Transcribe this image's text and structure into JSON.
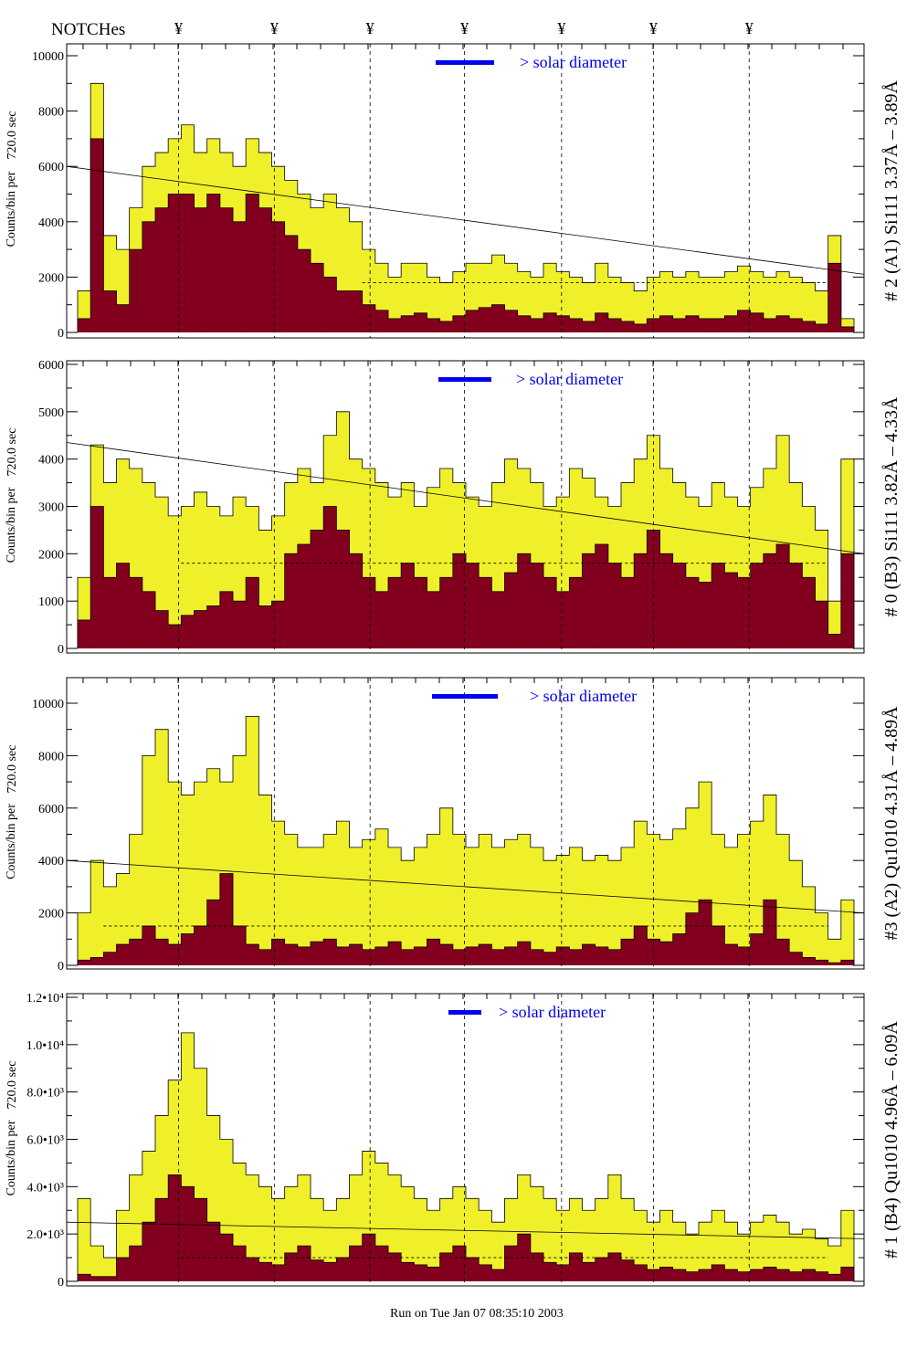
{
  "header": {
    "notches_label": "NOTCHes",
    "notch_symbol": "¥"
  },
  "footer": {
    "run_text": "Run on Tue Jan 07 08:35:10 2003"
  },
  "colors": {
    "yellow": "#f0f02a",
    "red": "#82001e",
    "legend": "#0000ee"
  },
  "chart_data": [
    {
      "type": "bar",
      "title": "# 2 (A1) Si111  3.37Å – 3.89Å",
      "ylabel": "Counts/bin per",
      "ylabel2": "720.0 sec",
      "legend": "> solar diameter",
      "ylim": [
        0,
        10000
      ],
      "yticks": [
        0,
        2000,
        4000,
        6000,
        8000,
        10000
      ],
      "ytick_labels": [
        "0",
        "2000",
        "4000",
        "6000",
        "8000",
        "10000"
      ],
      "notches": [
        7.8,
        15.2,
        22.6,
        29.9,
        37.4,
        44.5,
        51.9
      ],
      "fit_line": [
        6000,
        2100
      ],
      "dashed_level": {
        "from": 22,
        "to": 58,
        "value": 1800
      },
      "series": [
        {
          "name": "total",
          "values": [
            1500,
            9000,
            3500,
            3000,
            4500,
            6000,
            6500,
            7000,
            7500,
            6500,
            7000,
            6500,
            6000,
            7000,
            6500,
            6000,
            5500,
            5000,
            4500,
            5000,
            4500,
            4000,
            3000,
            2500,
            2000,
            2500,
            2500,
            2000,
            1800,
            2200,
            2500,
            2500,
            2800,
            2500,
            2200,
            2000,
            2500,
            2200,
            2000,
            1800,
            2500,
            2000,
            1800,
            1500,
            2000,
            2200,
            2000,
            2200,
            2000,
            2000,
            2200,
            2400,
            2200,
            2000,
            2200,
            2000,
            1800,
            1500,
            3500,
            500
          ]
        },
        {
          "name": "selected",
          "values": [
            500,
            7000,
            1500,
            1000,
            3000,
            4000,
            4500,
            5000,
            5000,
            4500,
            5000,
            4500,
            4000,
            5000,
            4500,
            4000,
            3500,
            3000,
            2500,
            2000,
            1500,
            1500,
            1000,
            800,
            500,
            600,
            700,
            500,
            400,
            600,
            800,
            900,
            1000,
            800,
            600,
            500,
            700,
            600,
            500,
            400,
            700,
            500,
            400,
            300,
            500,
            600,
            500,
            600,
            500,
            500,
            600,
            800,
            700,
            500,
            600,
            500,
            400,
            300,
            2500,
            200
          ]
        }
      ]
    },
    {
      "type": "bar",
      "title": "# 0 (B3) Si111  3.82Å – 4.33Å",
      "ylabel": "Counts/bin per",
      "ylabel2": "720.0 sec",
      "legend": "> solar diameter",
      "ylim": [
        0,
        6000
      ],
      "yticks": [
        0,
        1000,
        2000,
        3000,
        4000,
        5000,
        6000
      ],
      "ytick_labels": [
        "0",
        "1000",
        "2000",
        "3000",
        "4000",
        "5000",
        "6000"
      ],
      "notches": [
        7.8,
        15.2,
        22.6,
        29.9,
        37.4,
        44.5,
        51.9
      ],
      "fit_line": [
        4350,
        2000
      ],
      "dashed_level": {
        "from": 8,
        "to": 58,
        "value": 1800
      },
      "series": [
        {
          "name": "total",
          "values": [
            1500,
            4300,
            3500,
            4000,
            3800,
            3500,
            3200,
            2800,
            3000,
            3300,
            3000,
            2800,
            3200,
            3000,
            2500,
            2800,
            3500,
            3800,
            3500,
            4500,
            5000,
            4000,
            3800,
            3500,
            3200,
            3500,
            3000,
            3400,
            3800,
            3500,
            3200,
            3000,
            3500,
            4000,
            3800,
            3500,
            3000,
            3200,
            3800,
            3600,
            3200,
            3000,
            3500,
            4000,
            4500,
            3800,
            3500,
            3200,
            3000,
            3500,
            3200,
            3000,
            3400,
            3800,
            4500,
            3500,
            3000,
            2500,
            1000,
            4000
          ]
        },
        {
          "name": "selected",
          "values": [
            600,
            3000,
            1500,
            1800,
            1500,
            1200,
            800,
            500,
            700,
            800,
            900,
            1200,
            1000,
            1500,
            900,
            1000,
            2000,
            2200,
            2500,
            3000,
            2500,
            2000,
            1500,
            1200,
            1500,
            1800,
            1500,
            1200,
            1500,
            2000,
            1800,
            1500,
            1200,
            1600,
            2000,
            1800,
            1500,
            1200,
            1500,
            2000,
            2200,
            1800,
            1500,
            2000,
            2500,
            2000,
            1800,
            1500,
            1400,
            1800,
            1600,
            1500,
            1800,
            2000,
            2200,
            1800,
            1500,
            1000,
            300,
            2000
          ]
        }
      ]
    },
    {
      "type": "bar",
      "title": "#3 (A2) Qu1010  4.31Å – 4.89Å",
      "ylabel": "Counts/bin per",
      "ylabel2": "720.0 sec",
      "legend": "> solar diameter",
      "ylim": [
        0,
        11000
      ],
      "yticks": [
        0,
        2000,
        4000,
        6000,
        8000,
        10000
      ],
      "ytick_labels": [
        "0",
        "2000",
        "4000",
        "6000",
        "8000",
        "10000"
      ],
      "notches": [
        7.8,
        15.2,
        22.6,
        29.9,
        37.4,
        44.5,
        51.9
      ],
      "fit_line": [
        4000,
        2000
      ],
      "dashed_level": {
        "from": 2,
        "to": 58,
        "value": 1500
      },
      "series": [
        {
          "name": "total",
          "values": [
            2000,
            4000,
            3000,
            3500,
            5000,
            8000,
            9000,
            7000,
            6500,
            7000,
            7500,
            7000,
            8000,
            9500,
            6500,
            5500,
            5000,
            4500,
            4500,
            5000,
            5500,
            4500,
            4800,
            5200,
            4500,
            4000,
            4500,
            5000,
            6000,
            5000,
            4500,
            5000,
            4500,
            4800,
            5000,
            4500,
            4000,
            4200,
            4500,
            4000,
            4200,
            4000,
            4500,
            5500,
            5000,
            4800,
            5200,
            6000,
            7000,
            5000,
            4500,
            5000,
            5500,
            6500,
            5000,
            4000,
            3000,
            2000,
            1000,
            2500
          ]
        },
        {
          "name": "selected",
          "values": [
            200,
            300,
            500,
            800,
            1000,
            1500,
            1000,
            800,
            1200,
            1500,
            2500,
            3500,
            1500,
            800,
            600,
            1000,
            800,
            700,
            900,
            1000,
            700,
            800,
            600,
            700,
            900,
            600,
            700,
            1000,
            800,
            600,
            700,
            800,
            600,
            700,
            900,
            600,
            500,
            700,
            600,
            800,
            700,
            600,
            1000,
            1500,
            1000,
            900,
            1200,
            2000,
            2500,
            1500,
            800,
            700,
            1200,
            2500,
            1000,
            500,
            300,
            200,
            100,
            200
          ]
        }
      ]
    },
    {
      "type": "bar",
      "title": "# 1 (B4) Qu1010 4.96Å – 6.09Å",
      "ylabel": "Counts/bin per",
      "ylabel2": "720.0 sec",
      "legend": "> solar diameter",
      "ylim": [
        0,
        12200
      ],
      "yticks": [
        0,
        2000,
        4000,
        6000,
        8000,
        10000,
        12000
      ],
      "ytick_labels": [
        "0",
        "2.0•10³",
        "4.0•10³",
        "6.0•10³",
        "8.0•10³",
        "1.0•10⁴",
        "1.2•10⁴"
      ],
      "notches": [
        7.8,
        15.2,
        22.6,
        29.9,
        37.4,
        44.5,
        51.9
      ],
      "fit_line": [
        2500,
        1800
      ],
      "dashed_level": {
        "from": 8,
        "to": 58,
        "value": 1000
      },
      "series": [
        {
          "name": "total",
          "values": [
            3500,
            1500,
            1000,
            3000,
            4500,
            5500,
            7000,
            8500,
            10500,
            9000,
            7000,
            6000,
            5000,
            4500,
            4000,
            3500,
            4000,
            4500,
            3500,
            3000,
            3500,
            4500,
            5500,
            5000,
            4500,
            4000,
            3500,
            3000,
            3500,
            4000,
            3500,
            3000,
            2500,
            3500,
            4500,
            4000,
            3500,
            3000,
            3500,
            3000,
            3500,
            4500,
            3500,
            3000,
            2500,
            3000,
            2500,
            2000,
            2500,
            3000,
            2500,
            2000,
            2500,
            2800,
            2500,
            2000,
            2200,
            1800,
            1500,
            3000
          ]
        },
        {
          "name": "selected",
          "values": [
            300,
            200,
            200,
            1000,
            1500,
            2500,
            3500,
            4500,
            4000,
            3500,
            2500,
            2000,
            1500,
            1000,
            800,
            700,
            1200,
            1500,
            900,
            800,
            1000,
            1500,
            2000,
            1500,
            1200,
            800,
            700,
            600,
            1200,
            1500,
            1000,
            700,
            500,
            1500,
            2000,
            1200,
            800,
            700,
            1200,
            800,
            1000,
            1200,
            900,
            700,
            500,
            600,
            500,
            400,
            500,
            700,
            500,
            400,
            500,
            600,
            500,
            400,
            500,
            400,
            300,
            600
          ]
        }
      ]
    }
  ]
}
